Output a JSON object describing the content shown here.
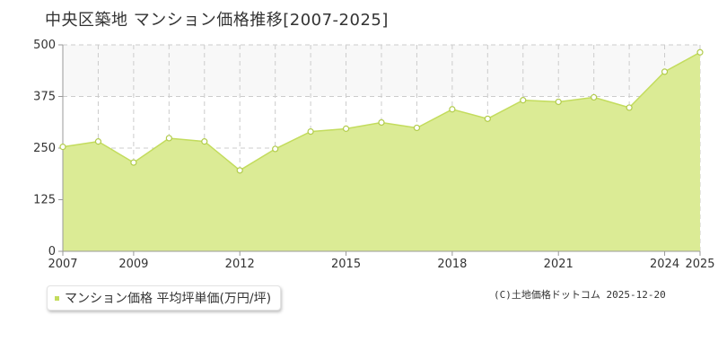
{
  "title": "中央区築地 マンション価格推移[2007-2025]",
  "legend_label": "マンション価格 平均坪単価(万円/坪)",
  "source_text": "(C)土地価格ドットコム 2025-12-20",
  "colors": {
    "area_fill": "#dbeb95",
    "line": "#c3dc5d",
    "marker_stroke": "#b2cc4c",
    "upper_band": "#f8f8f8",
    "grid": "#cccccc",
    "axis": "#999999"
  },
  "chart_data": {
    "type": "area",
    "title": "中央区築地 マンション価格推移[2007-2025]",
    "xlabel": "",
    "ylabel": "",
    "xlim": [
      2007,
      2025
    ],
    "ylim": [
      0,
      500
    ],
    "y_ticks": [
      0,
      125,
      250,
      375,
      500
    ],
    "x_tick_labels": [
      "2007",
      "2009",
      "2012",
      "2015",
      "2018",
      "2021",
      "2024",
      "2025"
    ],
    "grid": true,
    "legend_position": "bottom-left",
    "series": [
      {
        "name": "マンション価格 平均坪単価(万円/坪)",
        "x": [
          2007,
          2008,
          2009,
          2010,
          2011,
          2012,
          2013,
          2014,
          2015,
          2016,
          2017,
          2018,
          2019,
          2020,
          2021,
          2022,
          2023,
          2024,
          2025
        ],
        "values": [
          253,
          266,
          215,
          274,
          266,
          196,
          248,
          290,
          297,
          312,
          299,
          344,
          321,
          366,
          362,
          373,
          348,
          435,
          482
        ]
      }
    ]
  }
}
